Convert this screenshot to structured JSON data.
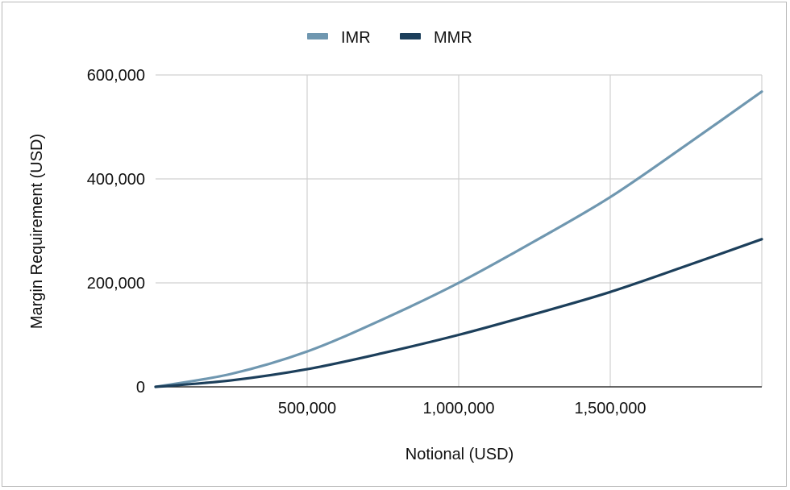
{
  "chart_data": {
    "type": "line",
    "title": "",
    "xlabel": "Notional (USD)",
    "ylabel": "Margin Requirement (USD)",
    "xlim": [
      0,
      2000000
    ],
    "ylim": [
      0,
      600000
    ],
    "x_ticks": [
      500000,
      1000000,
      1500000
    ],
    "x_tick_labels": [
      "500,000",
      "1,000,000",
      "1,500,000"
    ],
    "y_ticks": [
      0,
      200000,
      400000,
      600000
    ],
    "y_tick_labels": [
      "0",
      "200,000",
      "400,000",
      "600,000"
    ],
    "grid": true,
    "legend_position": "top-center",
    "x": [
      0,
      250000,
      500000,
      750000,
      1000000,
      1250000,
      1500000,
      1750000,
      2000000
    ],
    "series": [
      {
        "name": "IMR",
        "color": "#6f97b0",
        "values": [
          0,
          25000,
          68000,
          130000,
          200000,
          280000,
          365000,
          465000,
          568000
        ]
      },
      {
        "name": "MMR",
        "color": "#1c3f5b",
        "values": [
          0,
          12500,
          34000,
          65000,
          100000,
          140000,
          182500,
          232500,
          284000
        ]
      }
    ]
  }
}
